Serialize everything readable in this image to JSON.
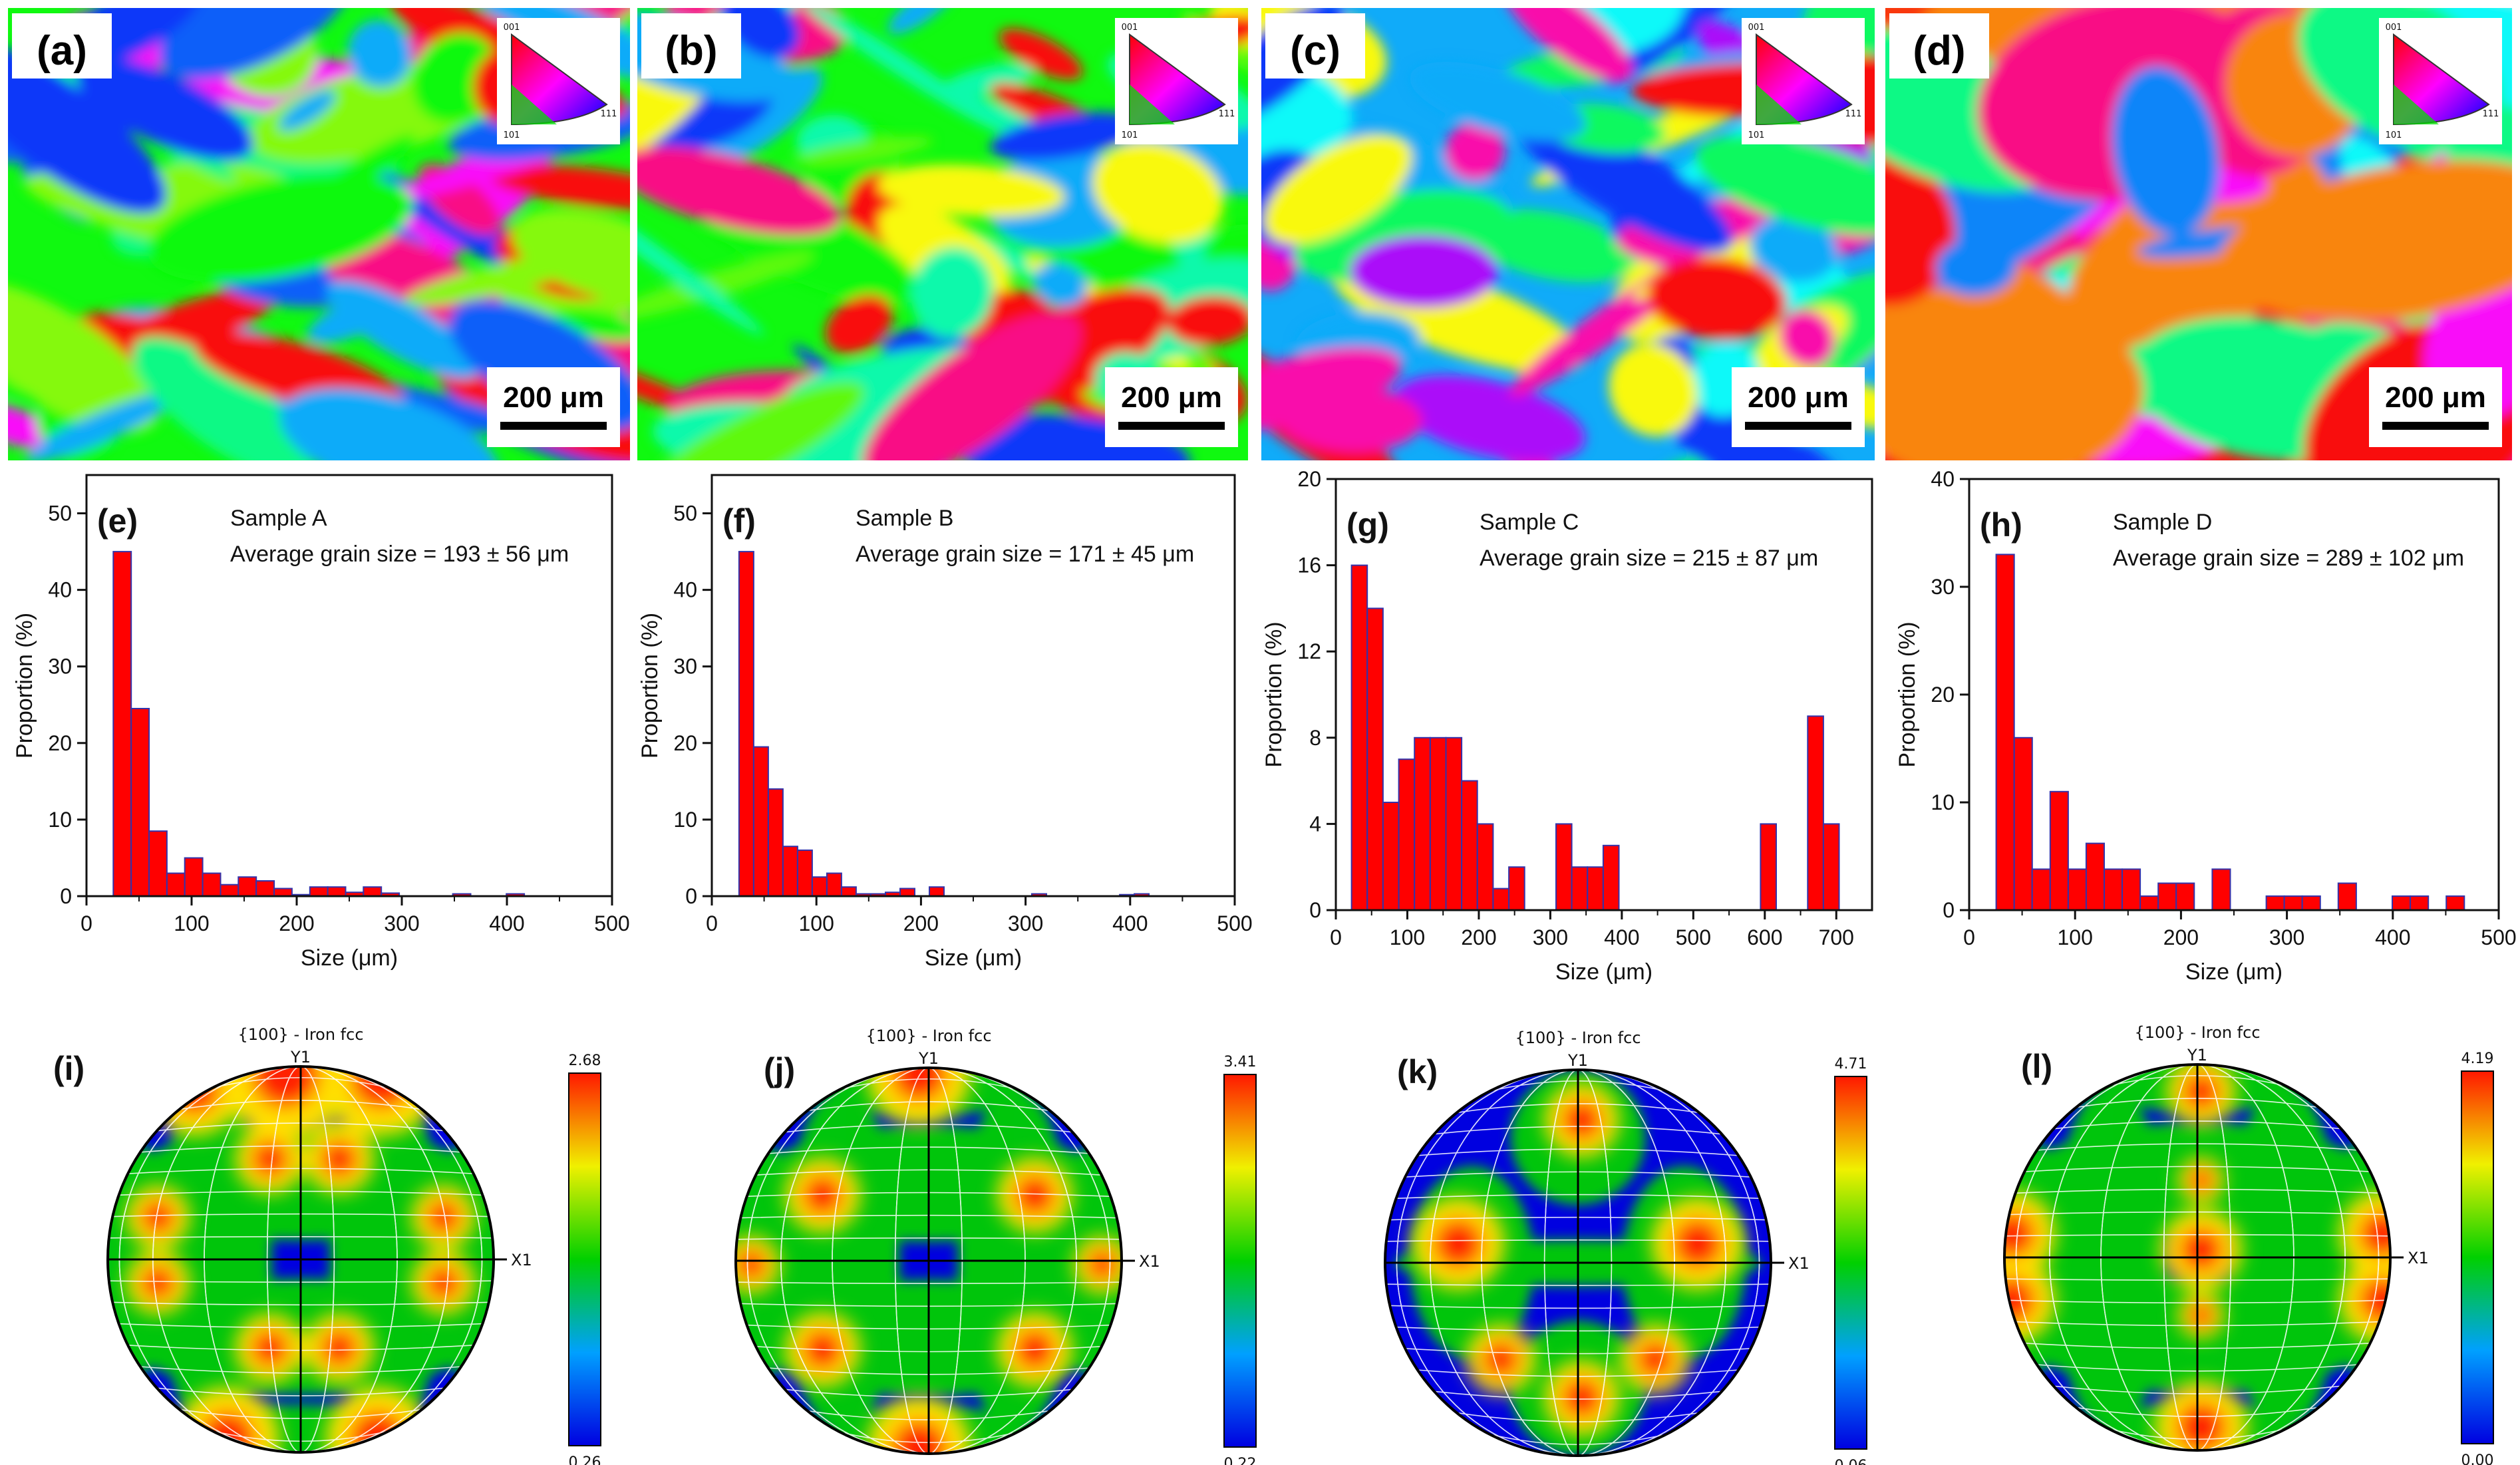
{
  "ebsd_panels": [
    {
      "label": "(a)",
      "scale_bar": "200 μm",
      "ipf_labels": [
        "001",
        "101",
        "111"
      ]
    },
    {
      "label": "(b)",
      "scale_bar": "200 μm",
      "ipf_labels": [
        "001",
        "101",
        "111"
      ]
    },
    {
      "label": "(c)",
      "scale_bar": "200 μm",
      "ipf_labels": [
        "001",
        "101",
        "111"
      ]
    },
    {
      "label": "(d)",
      "scale_bar": "200 μm",
      "ipf_labels": [
        "001",
        "101",
        "111"
      ]
    }
  ],
  "colors": {
    "bar_fill": "#ff0000",
    "bar_edge": "#3333aa",
    "axis": "#111111",
    "pf_low": "#0000e0",
    "pf_mid": "#00d000",
    "pf_high": "#ff2000"
  },
  "chart_data": [
    {
      "type": "bar",
      "label": "(e)",
      "title": "Sample A",
      "subtitle": "Average grain size = 193 ± 56 μm",
      "xlabel": "Size (μm)",
      "ylabel": "Proportion (%)",
      "xlim": [
        0,
        500
      ],
      "ylim": [
        0,
        55
      ],
      "xticks": [
        0,
        100,
        200,
        300,
        400,
        500
      ],
      "yticks": [
        0,
        10,
        20,
        30,
        40,
        50
      ],
      "bin_width": 17,
      "x": [
        34,
        51,
        68,
        85,
        102,
        119,
        136,
        153,
        170,
        187,
        204,
        221,
        238,
        255,
        272,
        289,
        357,
        408
      ],
      "values": [
        45,
        24.5,
        8.5,
        3,
        5,
        3,
        1.5,
        2.5,
        2,
        1,
        0.2,
        1.2,
        1.2,
        0.5,
        1.2,
        0.4,
        0.3,
        0.3
      ]
    },
    {
      "type": "bar",
      "label": "(f)",
      "title": "Sample B",
      "subtitle": "Average grain size = 171 ± 45 μm",
      "xlabel": "Size (μm)",
      "ylabel": "Proportion (%)",
      "xlim": [
        0,
        500
      ],
      "ylim": [
        0,
        55
      ],
      "xticks": [
        0,
        100,
        200,
        300,
        400,
        500
      ],
      "yticks": [
        0,
        10,
        20,
        30,
        40,
        50
      ],
      "bin_width": 14,
      "x": [
        33,
        47,
        61,
        75,
        89,
        103,
        117,
        131,
        145,
        159,
        173,
        187,
        215,
        313,
        397,
        411
      ],
      "values": [
        45,
        19.5,
        14,
        6.5,
        6,
        2.5,
        3,
        1.2,
        0.3,
        0.3,
        0.5,
        1,
        1.2,
        0.3,
        0.2,
        0.3
      ]
    },
    {
      "type": "bar",
      "label": "(g)",
      "title": "Sample C",
      "subtitle": "Average grain size = 215 ± 87 μm",
      "xlabel": "Size (μm)",
      "ylabel": "Proportion (%)",
      "xlim": [
        0,
        750
      ],
      "ylim": [
        0,
        20
      ],
      "xticks": [
        0,
        100,
        200,
        300,
        400,
        500,
        600,
        700
      ],
      "yticks": [
        0,
        4,
        8,
        12,
        16,
        20
      ],
      "bin_width": 22,
      "x": [
        33,
        55,
        77,
        99,
        121,
        143,
        165,
        187,
        209,
        231,
        253,
        319,
        341,
        363,
        385,
        605,
        671,
        693
      ],
      "values": [
        16,
        14,
        5,
        7,
        8,
        8,
        8,
        6,
        4,
        1,
        2,
        4,
        2,
        2,
        3,
        4,
        9,
        4
      ]
    },
    {
      "type": "bar",
      "label": "(h)",
      "title": "Sample D",
      "subtitle": "Average grain size = 289 ± 102 μm",
      "xlabel": "Size (μm)",
      "ylabel": "Proportion (%)",
      "xlim": [
        0,
        500
      ],
      "ylim": [
        0,
        40
      ],
      "xticks": [
        0,
        100,
        200,
        300,
        400,
        500
      ],
      "yticks": [
        0,
        10,
        20,
        30,
        40
      ],
      "bin_width": 17,
      "x": [
        34,
        51,
        68,
        85,
        102,
        119,
        136,
        153,
        170,
        187,
        204,
        238,
        289,
        306,
        323,
        357,
        408,
        425,
        459
      ],
      "values": [
        33,
        16,
        3.8,
        11,
        3.8,
        6.2,
        3.8,
        3.8,
        1.3,
        2.5,
        2.5,
        3.8,
        1.3,
        1.3,
        1.3,
        2.5,
        1.3,
        1.3,
        1.3
      ]
    }
  ],
  "pole_figures": [
    {
      "label": "(i)",
      "title": "{100} - Iron fcc",
      "axis_y": "Y1",
      "axis_x": "X1",
      "max": "2.68",
      "min": "0.26"
    },
    {
      "label": "(j)",
      "title": "{100} - Iron fcc",
      "axis_y": "Y1",
      "axis_x": "X1",
      "max": "3.41",
      "min": "0.22"
    },
    {
      "label": "(k)",
      "title": "{100} - Iron fcc",
      "axis_y": "Y1",
      "axis_x": "X1",
      "max": "4.71",
      "min": "0.06"
    },
    {
      "label": "(l)",
      "title": "{100} - Iron fcc",
      "axis_y": "Y1",
      "axis_x": "X1",
      "max": "4.19",
      "min": "0.00"
    }
  ]
}
